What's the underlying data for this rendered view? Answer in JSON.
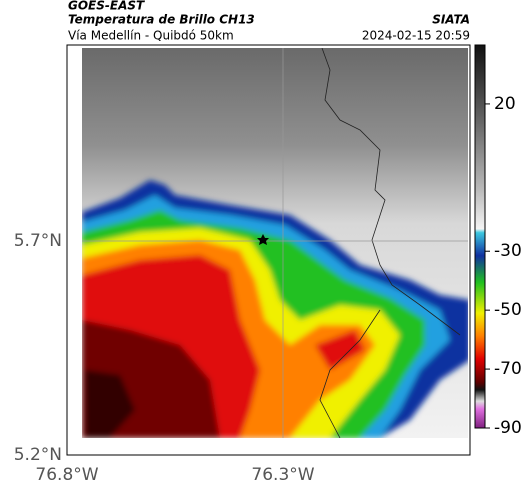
{
  "header": {
    "satellite": "GOES-EAST",
    "product": "Temperatura de Brillo CH13",
    "region": "Vía Medellín - Quibdó 50km",
    "source": "SIATA",
    "datetime": "2024-02-15 20:59"
  },
  "map": {
    "lat_labels": [
      "5.7°N",
      "5.2°N"
    ],
    "lon_labels": [
      "76.8°W",
      "76.3°W"
    ]
  },
  "colorbar": {
    "lim": [
      -90,
      40
    ],
    "ticks": [
      20,
      -30,
      -50,
      -70,
      -90
    ]
  }
}
